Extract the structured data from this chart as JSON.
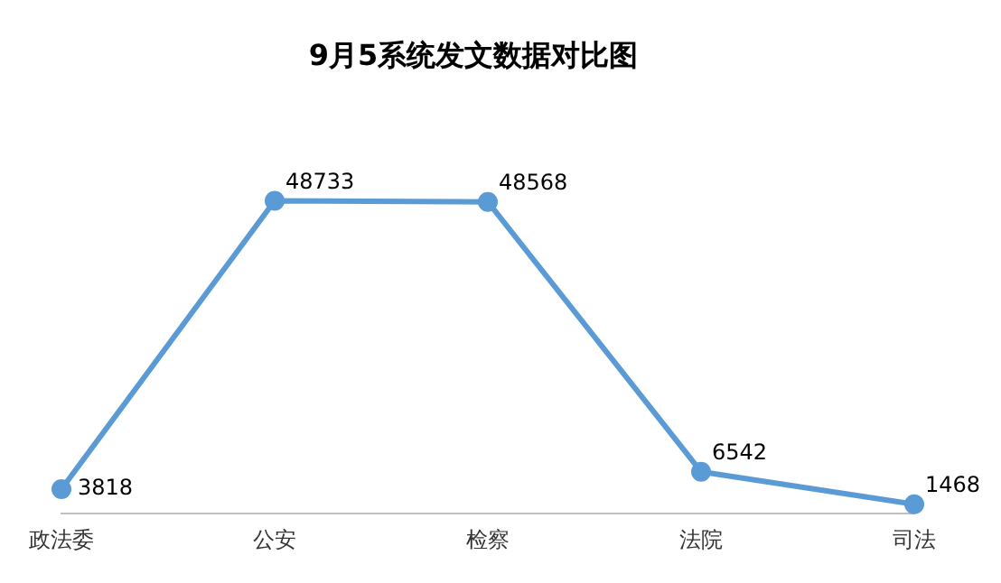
{
  "chart_data": {
    "type": "line",
    "title": "9月5系统发文数据对比图",
    "categories": [
      "政法委",
      "公安",
      "检察",
      "法院",
      "司法"
    ],
    "series": [
      {
        "color": "#5b9bd5",
        "values": [
          3818,
          48733,
          48568,
          6542,
          1468
        ]
      }
    ],
    "data_labels": true,
    "marker": "circle",
    "grid": false,
    "legend": false
  }
}
